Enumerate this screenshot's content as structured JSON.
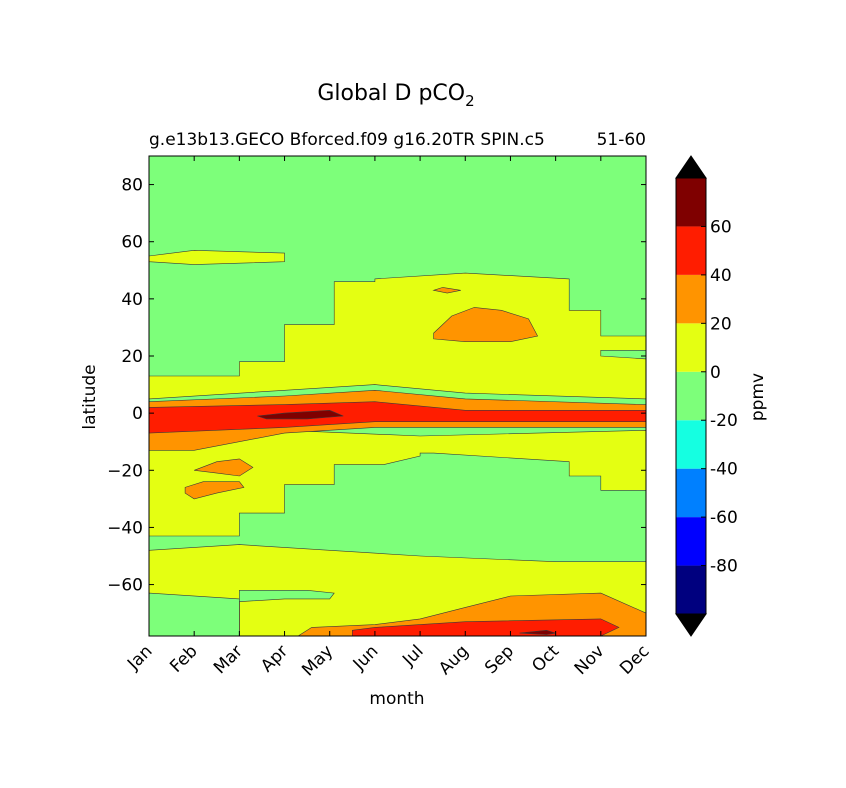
{
  "chart_data": {
    "type": "contour",
    "title": "Global D pCO",
    "title_subscript": "2",
    "subtitle_left": "g.e13b13.GECO Bforced.f09 g16.20TR SPIN.c5",
    "subtitle_right": "51-60",
    "xlabel": "month",
    "ylabel": "latitude",
    "x_ticks": [
      "Jan",
      "Feb",
      "Mar",
      "Apr",
      "May",
      "Jun",
      "Jul",
      "Aug",
      "Sep",
      "Oct",
      "Nov",
      "Dec"
    ],
    "xlim": [
      0,
      11
    ],
    "y_ticks": [
      80,
      60,
      40,
      20,
      0,
      -20,
      -40,
      -60
    ],
    "y_tick_labels": [
      "80",
      "60",
      "40",
      "20",
      "0",
      "−20",
      "−40",
      "−60"
    ],
    "ylim": [
      -78,
      90
    ],
    "colorbar": {
      "label": "ppmv",
      "levels": [
        -100,
        -80,
        -60,
        -40,
        -20,
        0,
        20,
        40,
        60,
        80
      ],
      "tick_values": [
        60,
        40,
        20,
        0,
        -20,
        -40,
        -60,
        -80
      ],
      "tick_labels": [
        "60",
        "40",
        "20",
        "0",
        "-20",
        "-40",
        "-60",
        "-80"
      ],
      "colors": [
        "#00007f",
        "#0000ff",
        "#0080ff",
        "#15ffe1",
        "#7dff7a",
        "#e4ff12",
        "#ff9400",
        "#ff1d00",
        "#7f0000"
      ],
      "extend_min_color": "#000000",
      "extend_max_color": "#000000"
    },
    "regions": [
      {
        "value_range": [
          -20,
          0
        ],
        "description": "background field",
        "points": [
          [
            0,
            90
          ],
          [
            11,
            90
          ],
          [
            11,
            -78
          ],
          [
            0,
            -78
          ]
        ]
      },
      {
        "value_range": [
          0,
          20
        ],
        "points": [
          [
            0,
            5
          ],
          [
            3,
            8
          ],
          [
            5,
            10
          ],
          [
            7,
            7
          ],
          [
            11,
            5
          ],
          [
            11,
            19
          ],
          [
            10,
            20
          ],
          [
            10,
            22
          ],
          [
            11,
            22
          ],
          [
            11,
            27
          ],
          [
            10,
            27
          ],
          [
            10,
            36
          ],
          [
            9.3,
            36
          ],
          [
            9.3,
            47
          ],
          [
            7,
            49
          ],
          [
            5,
            47
          ],
          [
            5,
            46
          ],
          [
            4.1,
            46
          ],
          [
            4.1,
            31
          ],
          [
            3,
            31
          ],
          [
            3,
            18
          ],
          [
            2,
            18
          ],
          [
            2,
            13
          ],
          [
            0,
            13
          ]
        ]
      },
      {
        "value_range": [
          0,
          20
        ],
        "points": [
          [
            0,
            -5
          ],
          [
            3,
            -6
          ],
          [
            6,
            -8
          ],
          [
            11,
            -6
          ],
          [
            11,
            -27
          ],
          [
            10,
            -27
          ],
          [
            10,
            -22
          ],
          [
            9.3,
            -22
          ],
          [
            9.3,
            -17
          ],
          [
            6.3,
            -14
          ],
          [
            6,
            -14
          ],
          [
            6,
            -15
          ],
          [
            5.2,
            -18
          ],
          [
            4.1,
            -18
          ],
          [
            4.1,
            -25
          ],
          [
            3,
            -25
          ],
          [
            3,
            -35
          ],
          [
            2,
            -35
          ],
          [
            2,
            -43
          ],
          [
            0,
            -43
          ]
        ]
      },
      {
        "value_range": [
          0,
          20
        ],
        "points": [
          [
            0,
            -48
          ],
          [
            2,
            -46
          ],
          [
            4,
            -48
          ],
          [
            6,
            -50
          ],
          [
            9,
            -52
          ],
          [
            11,
            -52
          ],
          [
            11,
            -78
          ],
          [
            0,
            -78
          ]
        ]
      },
      {
        "value_range": [
          0,
          20
        ],
        "points": [
          [
            0,
            55
          ],
          [
            1,
            57
          ],
          [
            3,
            56
          ],
          [
            3,
            53
          ],
          [
            1,
            52
          ],
          [
            0,
            53
          ]
        ]
      },
      {
        "value_range": [
          -20,
          0
        ],
        "points": [
          [
            0,
            -63
          ],
          [
            2,
            -65
          ],
          [
            2,
            -78
          ],
          [
            0,
            -78
          ]
        ]
      },
      {
        "value_range": [
          -20,
          0
        ],
        "points": [
          [
            2,
            -78
          ],
          [
            2,
            -66
          ],
          [
            3,
            -65
          ],
          [
            4,
            -65
          ],
          [
            4.1,
            -63
          ],
          [
            3.5,
            -62
          ],
          [
            2,
            -62
          ],
          [
            2,
            -63
          ]
        ]
      },
      {
        "value_range": [
          20,
          40
        ],
        "points": [
          [
            0,
            4
          ],
          [
            3,
            6
          ],
          [
            5,
            8
          ],
          [
            7,
            5
          ],
          [
            11,
            3
          ],
          [
            11,
            -5
          ],
          [
            7,
            -5
          ],
          [
            5,
            -5
          ],
          [
            3,
            -7
          ],
          [
            1,
            -13
          ],
          [
            0,
            -13
          ]
        ]
      },
      {
        "value_range": [
          40,
          60
        ],
        "points": [
          [
            0,
            2
          ],
          [
            3,
            3
          ],
          [
            5,
            4
          ],
          [
            7,
            1
          ],
          [
            11,
            1
          ],
          [
            11,
            -3
          ],
          [
            7,
            -3
          ],
          [
            5,
            -3
          ],
          [
            3,
            -5
          ],
          [
            0,
            -7
          ]
        ]
      },
      {
        "value_range": [
          60,
          80
        ],
        "points": [
          [
            2.4,
            -1
          ],
          [
            3,
            0
          ],
          [
            4,
            1
          ],
          [
            4.3,
            -1
          ],
          [
            3.5,
            -2
          ],
          [
            2.6,
            -2
          ]
        ]
      },
      {
        "value_range": [
          20,
          40
        ],
        "points": [
          [
            6.3,
            28
          ],
          [
            6.7,
            34
          ],
          [
            7.2,
            37
          ],
          [
            7.8,
            36
          ],
          [
            8.4,
            33
          ],
          [
            8.6,
            27
          ],
          [
            8,
            25
          ],
          [
            7,
            25
          ],
          [
            6.3,
            26
          ]
        ]
      },
      {
        "value_range": [
          20,
          40
        ],
        "points": [
          [
            6.3,
            43
          ],
          [
            6.5,
            44
          ],
          [
            6.9,
            43
          ],
          [
            6.6,
            42
          ]
        ]
      },
      {
        "value_range": [
          20,
          40
        ],
        "points": [
          [
            1,
            -20
          ],
          [
            1.5,
            -17
          ],
          [
            2,
            -16
          ],
          [
            2.3,
            -19
          ],
          [
            2,
            -22
          ],
          [
            1.5,
            -21
          ],
          [
            1,
            -20
          ]
        ]
      },
      {
        "value_range": [
          20,
          40
        ],
        "points": [
          [
            0.8,
            -26
          ],
          [
            1.2,
            -24
          ],
          [
            2,
            -24
          ],
          [
            2.1,
            -26
          ],
          [
            1.5,
            -28
          ],
          [
            1,
            -30
          ],
          [
            0.8,
            -28
          ]
        ]
      },
      {
        "value_range": [
          20,
          40
        ],
        "points": [
          [
            3.3,
            -78
          ],
          [
            3.6,
            -75
          ],
          [
            5,
            -74
          ],
          [
            6,
            -72
          ],
          [
            7,
            -68
          ],
          [
            8,
            -64
          ],
          [
            10,
            -63
          ],
          [
            11,
            -70
          ],
          [
            11,
            -78
          ]
        ]
      },
      {
        "value_range": [
          40,
          60
        ],
        "points": [
          [
            4.5,
            -76
          ],
          [
            5,
            -75
          ],
          [
            6,
            -74
          ],
          [
            7,
            -73
          ],
          [
            10,
            -72
          ],
          [
            10.4,
            -75
          ],
          [
            10,
            -78
          ],
          [
            4.5,
            -78
          ]
        ]
      },
      {
        "value_range": [
          60,
          80
        ],
        "points": [
          [
            8.2,
            -77
          ],
          [
            8.8,
            -76
          ],
          [
            9,
            -77
          ],
          [
            8.8,
            -77.5
          ]
        ]
      }
    ]
  }
}
